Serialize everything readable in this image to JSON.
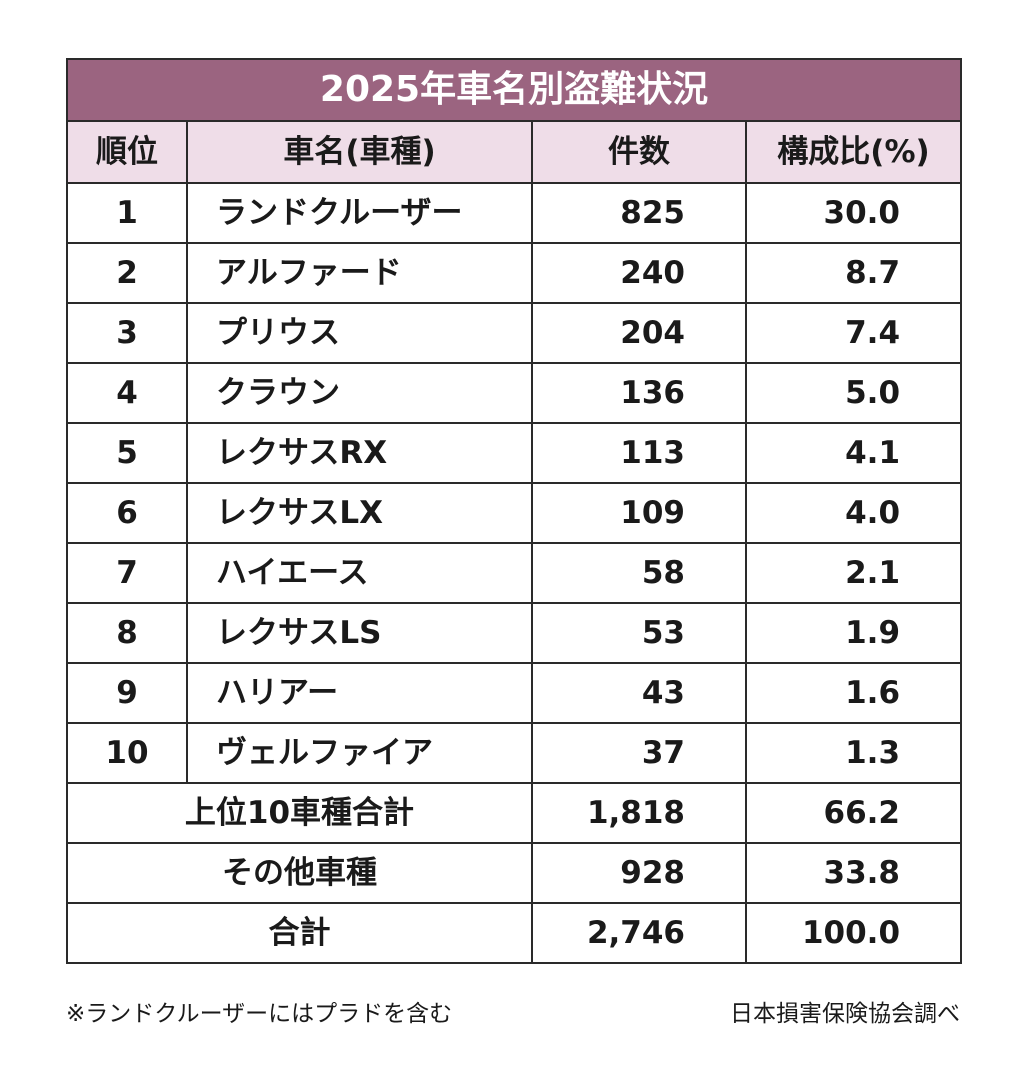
{
  "title": "2025年車名別盗難状況",
  "headers": {
    "rank": "順位",
    "name": "車名(車種)",
    "count": "件数",
    "ratio": "構成比(%)"
  },
  "rows": [
    {
      "rank": "1",
      "name": "ランドクルーザー",
      "count": "825",
      "ratio": "30.0"
    },
    {
      "rank": "2",
      "name": "アルファード",
      "count": "240",
      "ratio": "8.7"
    },
    {
      "rank": "3",
      "name": "プリウス",
      "count": "204",
      "ratio": "7.4"
    },
    {
      "rank": "4",
      "name": "クラウン",
      "count": "136",
      "ratio": "5.0"
    },
    {
      "rank": "5",
      "name": "レクサスRX",
      "count": "113",
      "ratio": "4.1"
    },
    {
      "rank": "6",
      "name": "レクサスLX",
      "count": "109",
      "ratio": "4.0"
    },
    {
      "rank": "7",
      "name": "ハイエース",
      "count": "58",
      "ratio": "2.1"
    },
    {
      "rank": "8",
      "name": "レクサスLS",
      "count": "53",
      "ratio": "1.9"
    },
    {
      "rank": "9",
      "name": "ハリアー",
      "count": "43",
      "ratio": "1.6"
    },
    {
      "rank": "10",
      "name": "ヴェルファイア",
      "count": "37",
      "ratio": "1.3"
    }
  ],
  "summary": [
    {
      "label": "上位10車種合計",
      "count": "1,818",
      "ratio": "66.2"
    },
    {
      "label": "その他車種",
      "count": "928",
      "ratio": "33.8"
    },
    {
      "label": "合計",
      "count": "2,746",
      "ratio": "100.0"
    }
  ],
  "footnote": "※ランドクルーザーにはプラドを含む",
  "source": "日本損害保険協会調べ",
  "colors": {
    "title_bg": "#9b6480",
    "header_bg": "#efdde8",
    "border": "#2a2a2a"
  }
}
